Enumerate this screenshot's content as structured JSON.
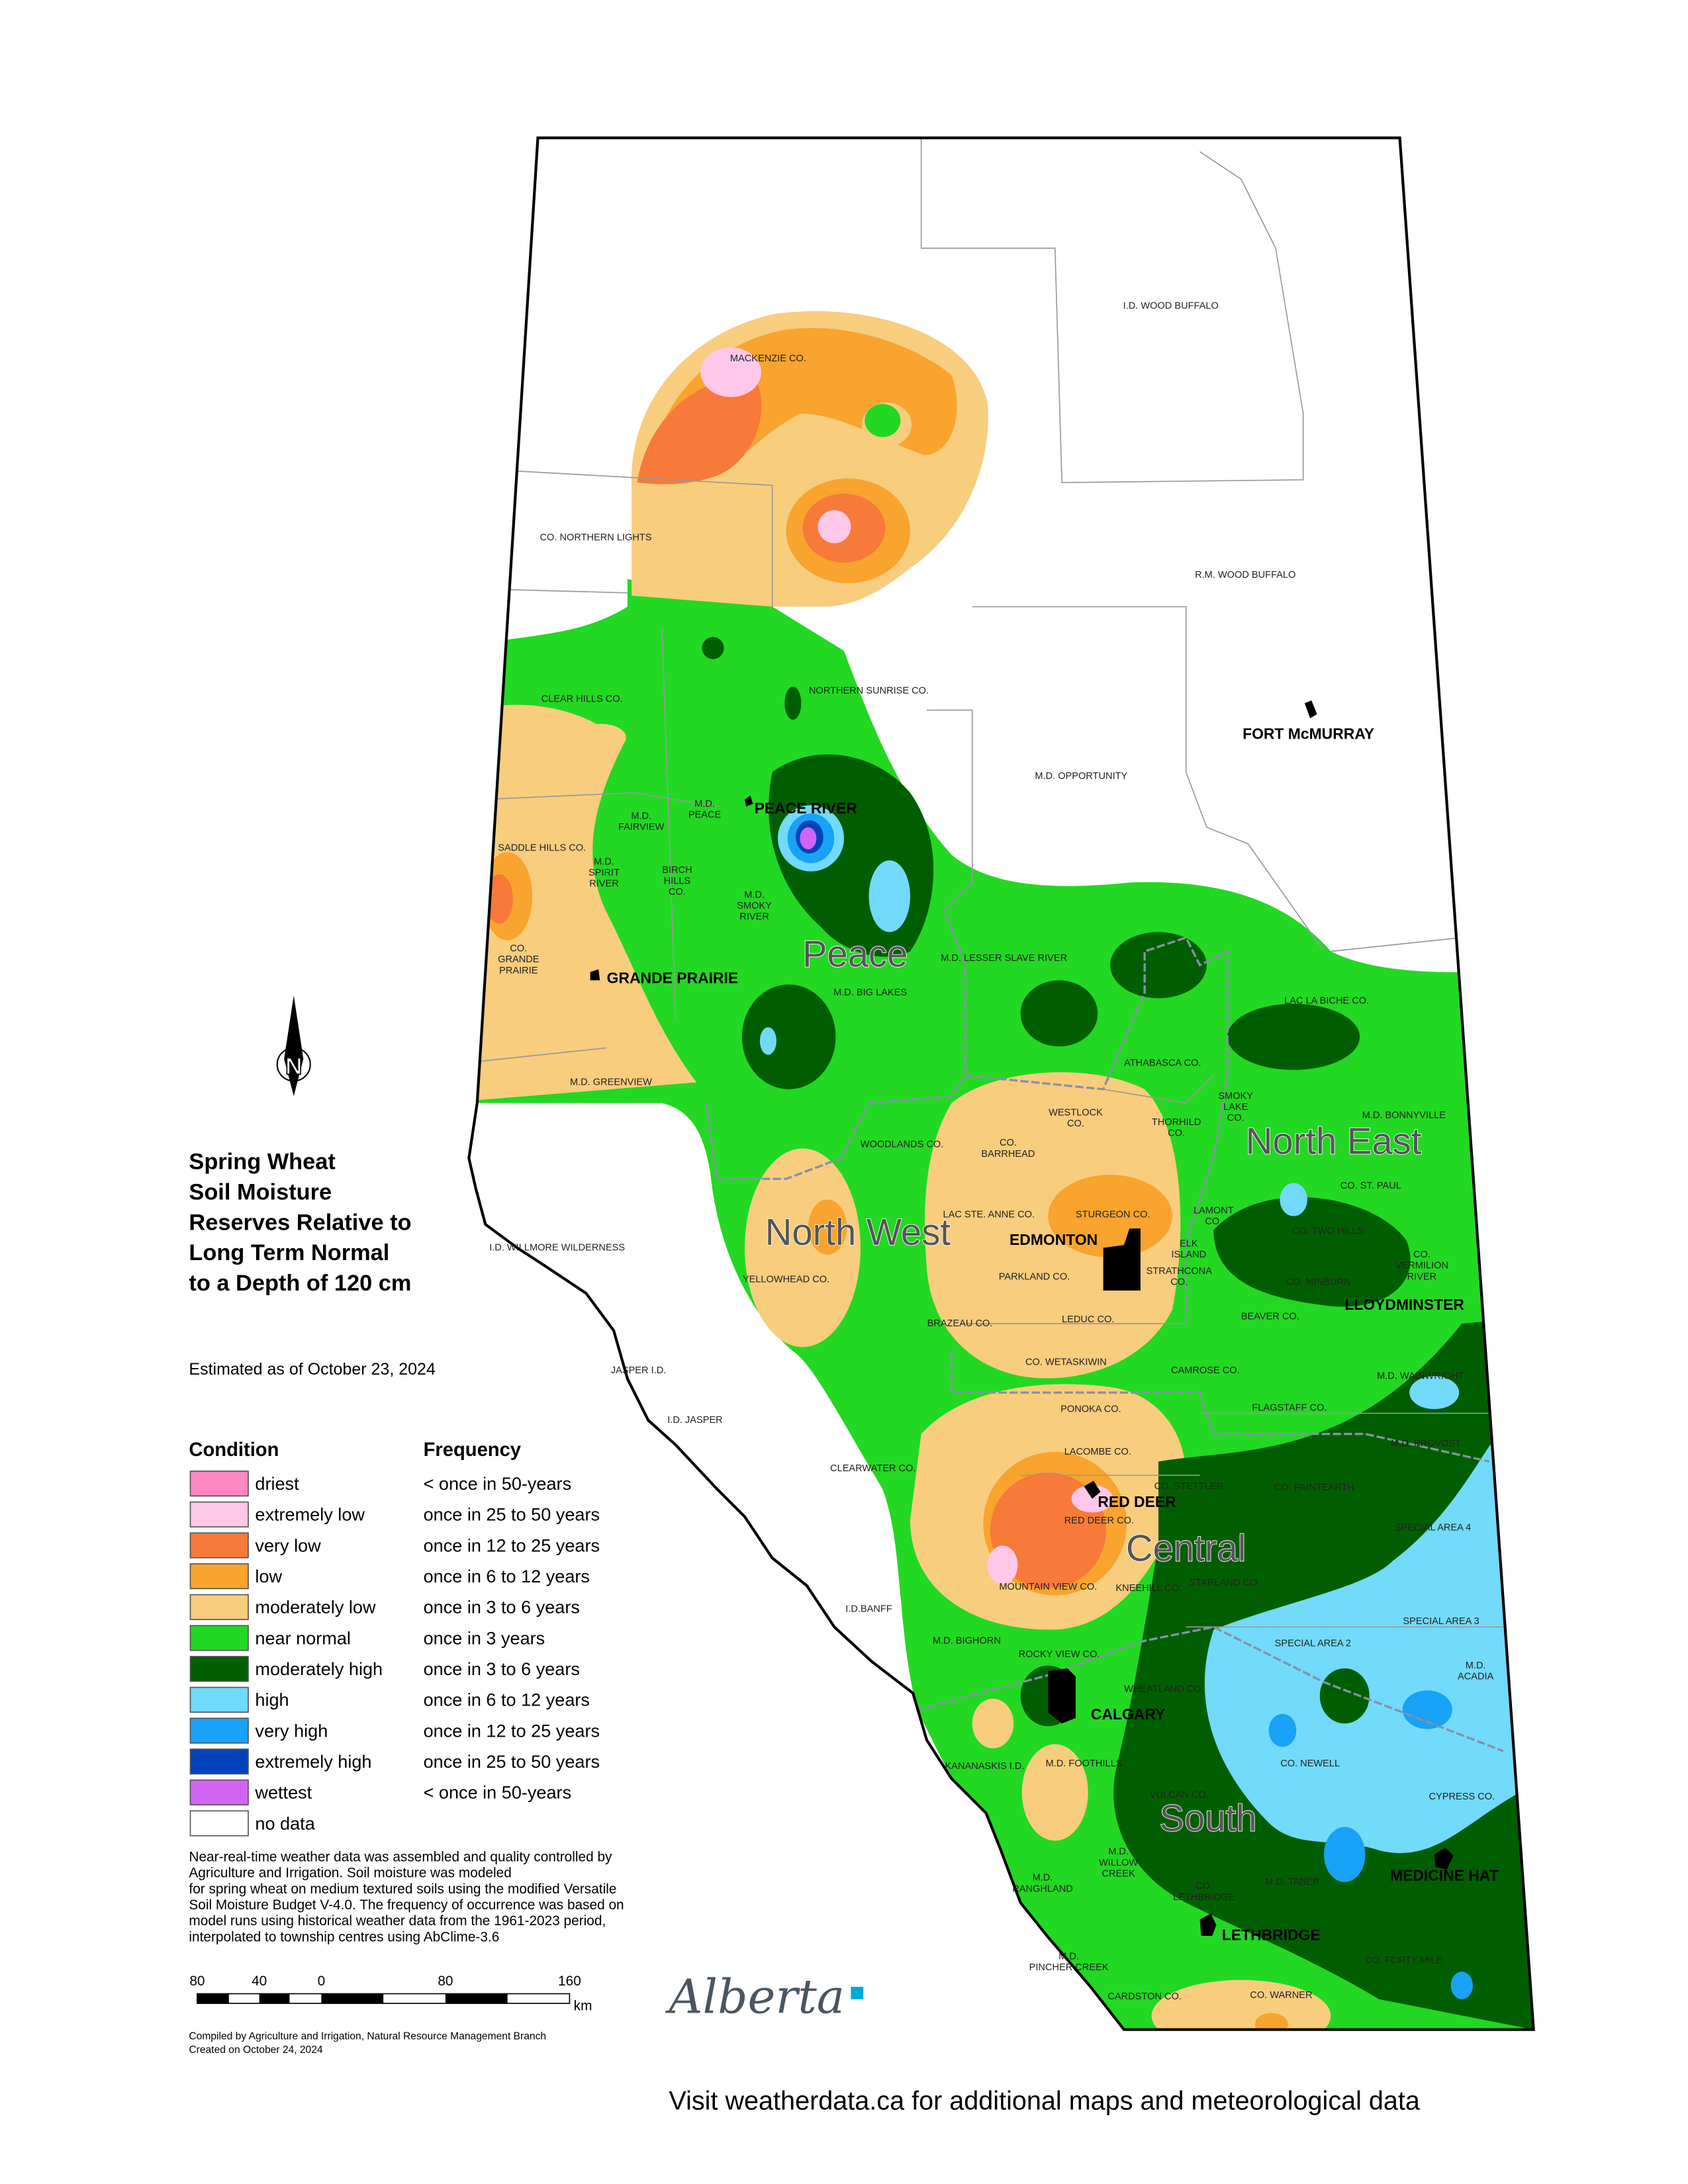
{
  "title": [
    "Spring Wheat",
    "Soil Moisture",
    "Reserves Relative to",
    "Long Term Normal",
    "to a Depth of 120 cm"
  ],
  "estimated": "Estimated as of October 23, 2024",
  "legend": {
    "condition_header": "Condition",
    "frequency_header": "Frequency",
    "items": [
      {
        "label": "driest",
        "frequency": "< once in 50-years",
        "color": "#ff88c4"
      },
      {
        "label": "extremely low",
        "frequency": "once in 25 to 50 years",
        "color": "#ffc8e8"
      },
      {
        "label": "very low",
        "frequency": "once in 12 to 25 years",
        "color": "#f77a3a"
      },
      {
        "label": "low",
        "frequency": "once in 6 to 12 years",
        "color": "#f8a42e"
      },
      {
        "label": "moderately low",
        "frequency": "once in 3 to 6 years",
        "color": "#f8cd7e"
      },
      {
        "label": "near normal",
        "frequency": "once in 3 years",
        "color": "#22d822"
      },
      {
        "label": "moderately high",
        "frequency": "once in 3 to 6 years",
        "color": "#005e00"
      },
      {
        "label": "high",
        "frequency": "once in 6 to 12 years",
        "color": "#72dafa"
      },
      {
        "label": "very high",
        "frequency": "once in 12 to 25 years",
        "color": "#18a2f8"
      },
      {
        "label": "extremely high",
        "frequency": "once in 25 to 50 years",
        "color": "#0042b8"
      },
      {
        "label": "wettest",
        "frequency": "< once in 50-years",
        "color": "#d264f2"
      },
      {
        "label": "no data",
        "color": "#ffffff"
      }
    ]
  },
  "notes": [
    "Near-real-time weather data was assembled and quality controlled by",
    "Agriculture and Irrigation.  Soil moisture was modeled",
    "for spring wheat on medium textured soils using the modified Versatile",
    "Soil Moisture Budget V-4.0.  The frequency of occurrence was based on",
    "model runs using historical weather data from the 1961-2023 period,",
    "interpolated to township centres using AbClime-3.6"
  ],
  "scale": {
    "labels": [
      "80",
      "40",
      "0",
      "80",
      "160"
    ],
    "unit": "km"
  },
  "compass": "N",
  "credits": [
    "Compiled by Agriculture and Irrigation, Natural Resource Management Branch",
    "Created on October 24, 2024"
  ],
  "logo": "Alberta",
  "footer": "Visit weatherdata.ca for additional maps and meteorological data",
  "regions": [
    "Peace",
    "North West",
    "North East",
    "Central",
    "South"
  ],
  "cities": [
    "PEACE RIVER",
    "GRANDE PRAIRIE",
    "EDMONTON",
    "RED DEER",
    "CALGARY",
    "LLOYDMINSTER",
    "FORT McMURRAY",
    "MEDICINE HAT",
    "LETHBRIDGE"
  ],
  "municipalities": [
    [
      "MACKENZIE CO."
    ],
    [
      "CO. NORTHERN LIGHTS"
    ],
    [
      "I.D. WOOD BUFFALO"
    ],
    [
      "R.M. WOOD BUFFALO"
    ],
    [
      "CLEAR HILLS CO."
    ],
    [
      "NORTHERN SUNRISE CO."
    ],
    [
      "M.D. OPPORTUNITY"
    ],
    [
      "M.D.",
      "PEACE"
    ],
    [
      "M.D.",
      "FAIRVIEW"
    ],
    [
      "SADDLE HILLS CO."
    ],
    [
      "M.D.",
      "SPIRIT",
      "RIVER"
    ],
    [
      "BIRCH",
      "HILLS",
      "CO."
    ],
    [
      "M.D.",
      "SMOKY",
      "RIVER"
    ],
    [
      "CO.",
      "GRANDE",
      "PRAIRIE"
    ],
    [
      "M.D. LESSER SLAVE RIVER"
    ],
    [
      "M.D. BIG LAKES"
    ],
    [
      "LAC LA BICHE CO."
    ],
    [
      "M.D. GREENVIEW"
    ],
    [
      "ATHABASCA CO."
    ],
    [
      "SMOKY",
      "LAKE",
      "CO."
    ],
    [
      "M.D. BONNYVILLE"
    ],
    [
      "WESTLOCK",
      "CO."
    ],
    [
      "THORHILD",
      "CO."
    ],
    [
      "WOODLANDS CO."
    ],
    [
      "CO.",
      "BARRHEAD"
    ],
    [
      "CO. ST. PAUL"
    ],
    [
      "I.D. WILLMORE WILDERNESS"
    ],
    [
      "LAC STE. ANNE CO."
    ],
    [
      "STURGEON CO."
    ],
    [
      "LAMONT",
      "CO."
    ],
    [
      "CO. TWO HILLS"
    ],
    [
      "ELK",
      "ISLAND"
    ],
    [
      "CO.",
      "VERMILION",
      "RIVER"
    ],
    [
      "PARKLAND CO."
    ],
    [
      "STRATHCONA",
      "CO."
    ],
    [
      "YELLOWHEAD CO."
    ],
    [
      "CO. MINBURN"
    ],
    [
      "BEAVER CO."
    ],
    [
      "BRAZEAU CO."
    ],
    [
      "LEDUC CO."
    ],
    [
      "CO. WETASKIWIN"
    ],
    [
      "JASPER I.D."
    ],
    [
      "CAMROSE CO."
    ],
    [
      "M.D. WAINWRIGHT"
    ],
    [
      "I.D. JASPER"
    ],
    [
      "PONOKA CO."
    ],
    [
      "FLAGSTAFF CO."
    ],
    [
      "M.D. PROVOST"
    ],
    [
      "LACOMBE CO."
    ],
    [
      "CLEARWATER CO."
    ],
    [
      "CO. STETTLER"
    ],
    [
      "CO. PAINTEARTH"
    ],
    [
      "RED DEER CO."
    ],
    [
      "SPECIAL AREA 4"
    ],
    [
      "I.D.BANFF"
    ],
    [
      "MOUNTAIN VIEW CO."
    ],
    [
      "KNEEHILL CO."
    ],
    [
      "STARLAND CO."
    ],
    [
      "SPECIAL AREA 3"
    ],
    [
      "M.D. BIGHORN"
    ],
    [
      "SPECIAL AREA 2"
    ],
    [
      "ROCKY VIEW CO."
    ],
    [
      "M.D.",
      "ACADIA"
    ],
    [
      "WHEATLAND CO."
    ],
    [
      "KANANASKIS I.D."
    ],
    [
      "M.D. FOOTHILLS"
    ],
    [
      "CO. NEWELL"
    ],
    [
      "CYPRESS CO."
    ],
    [
      "VULCAN CO."
    ],
    [
      "M.D.",
      "WILLOW",
      "CREEK"
    ],
    [
      "M.D. TABER"
    ],
    [
      "M.D.",
      "RANGHLAND"
    ],
    [
      "CO.",
      "LETHBRIDGE"
    ],
    [
      "CO. FORTY MILE"
    ],
    [
      "M.D.",
      "PINCHER CREEK"
    ],
    [
      "CARDSTON CO."
    ],
    [
      "CO. WARNER"
    ]
  ]
}
